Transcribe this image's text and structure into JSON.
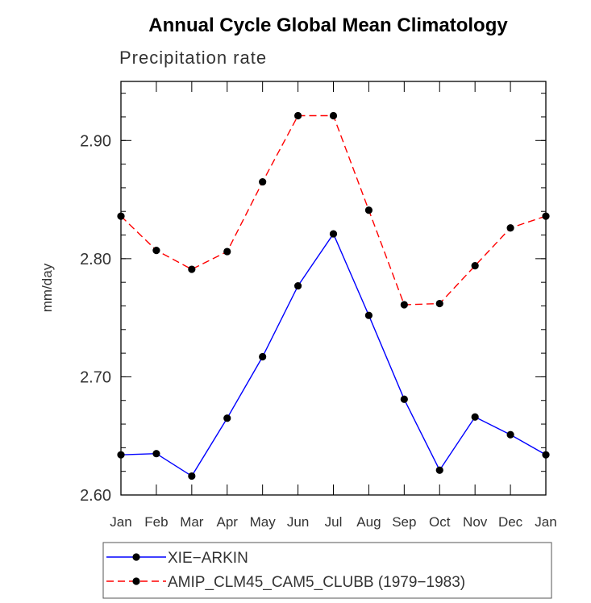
{
  "chart_data": {
    "type": "line",
    "title": "Annual Cycle Global Mean Climatology",
    "subtitle": "Precipitation rate",
    "ylabel": "mm/day",
    "xlabel": "",
    "categories": [
      "Jan",
      "Feb",
      "Mar",
      "Apr",
      "May",
      "Jun",
      "Jul",
      "Aug",
      "Sep",
      "Oct",
      "Nov",
      "Dec",
      "Jan"
    ],
    "ylim": [
      2.6,
      2.95
    ],
    "yticks": [
      "2.60",
      "2.70",
      "2.80",
      "2.90"
    ],
    "ytick_values": [
      2.6,
      2.7,
      2.8,
      2.9
    ],
    "series": [
      {
        "name": "XIE−ARKIN",
        "color": "#0000ff",
        "dash": "solid",
        "values": [
          2.634,
          2.635,
          2.616,
          2.665,
          2.717,
          2.777,
          2.821,
          2.752,
          2.681,
          2.621,
          2.666,
          2.651,
          2.634
        ]
      },
      {
        "name": "AMIP_CLM45_CAM5_CLUBB (1979−1983)",
        "color": "#ff0000",
        "dash": "dashed",
        "values": [
          2.836,
          2.807,
          2.791,
          2.806,
          2.865,
          2.921,
          2.921,
          2.841,
          2.761,
          2.762,
          2.794,
          2.826,
          2.836
        ]
      }
    ],
    "legend_position": "bottom"
  }
}
